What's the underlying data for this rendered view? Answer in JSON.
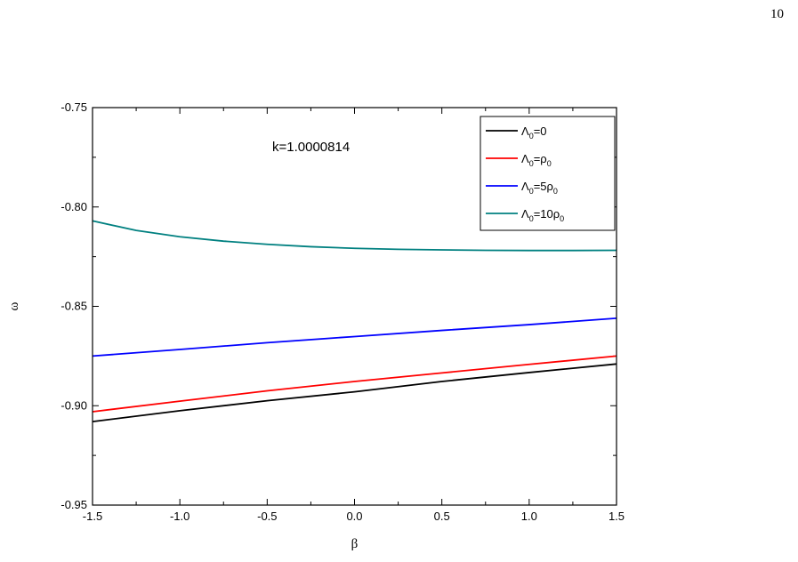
{
  "page": {
    "number": "10"
  },
  "chart_data": {
    "type": "line",
    "xlabel": "β",
    "ylabel": "ω",
    "xlim": [
      -1.5,
      1.5
    ],
    "ylim": [
      -0.95,
      -0.75
    ],
    "xticks": [
      -1.5,
      -1.0,
      -0.5,
      0.0,
      0.5,
      1.0,
      1.5
    ],
    "xtick_labels": [
      "-1.5",
      "-1.0",
      "-0.5",
      "0.0",
      "0.5",
      "1.0",
      "1.5"
    ],
    "yticks": [
      -0.95,
      -0.9,
      -0.85,
      -0.8,
      -0.75
    ],
    "ytick_labels": [
      "-0.95",
      "-0.90",
      "-0.85",
      "-0.80",
      "-0.75"
    ],
    "grid": false,
    "legend_position": "top-right",
    "annotation": "k=1.0000814",
    "series": [
      {
        "name_main": "Λ",
        "name_sub": "0",
        "name_rest": "=0",
        "color": "#000000",
        "x": [
          -1.5,
          -1.0,
          -0.5,
          0.0,
          0.5,
          1.0,
          1.5
        ],
        "y": [
          -0.908,
          -0.9025,
          -0.8975,
          -0.893,
          -0.8878,
          -0.8833,
          -0.879
        ]
      },
      {
        "name_main": "Λ",
        "name_sub": "0",
        "name_rest": "=ρ",
        "name_sub2": "0",
        "color": "#ff0000",
        "x": [
          -1.5,
          -1.0,
          -0.5,
          0.0,
          0.5,
          1.0,
          1.5
        ],
        "y": [
          -0.903,
          -0.8977,
          -0.8925,
          -0.8878,
          -0.8835,
          -0.8792,
          -0.875
        ]
      },
      {
        "name_main": "Λ",
        "name_sub": "0",
        "name_rest": "=5ρ",
        "name_sub2": "0",
        "color": "#0000ff",
        "x": [
          -1.5,
          -1.0,
          -0.5,
          0.0,
          0.5,
          1.0,
          1.5
        ],
        "y": [
          -0.875,
          -0.8717,
          -0.8683,
          -0.8652,
          -0.8621,
          -0.8592,
          -0.856
        ]
      },
      {
        "name_main": "Λ",
        "name_sub": "0",
        "name_rest": "=10ρ",
        "name_sub2": "0",
        "color": "#008080",
        "x": [
          -1.5,
          -1.25,
          -1.0,
          -0.75,
          -0.5,
          -0.25,
          0.0,
          0.25,
          0.5,
          0.75,
          1.0,
          1.25,
          1.5
        ],
        "y": [
          -0.807,
          -0.8118,
          -0.815,
          -0.8172,
          -0.8188,
          -0.82,
          -0.8208,
          -0.8213,
          -0.8216,
          -0.8218,
          -0.8219,
          -0.8219,
          -0.8218
        ]
      }
    ]
  }
}
